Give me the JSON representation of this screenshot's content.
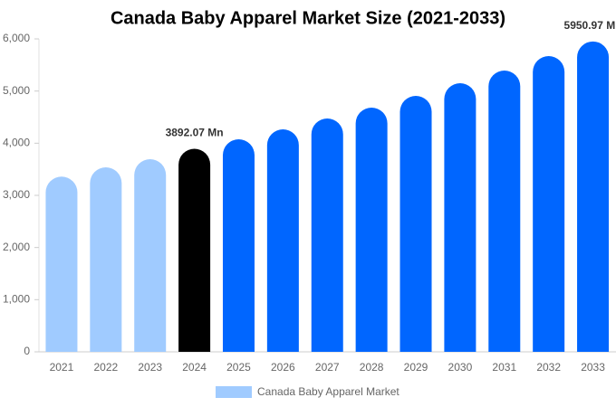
{
  "chart_data": {
    "type": "bar",
    "title": "Canada Baby Apparel Market Size (2021-2033)",
    "categories": [
      "2021",
      "2022",
      "2023",
      "2024",
      "2025",
      "2026",
      "2027",
      "2028",
      "2029",
      "2030",
      "2031",
      "2032",
      "2033"
    ],
    "series": [
      {
        "name": "Canada Baby Apparel Market",
        "color": "#a0cbff",
        "values": [
          3360,
          3537,
          3693,
          3892.07,
          4075,
          4266,
          4474,
          4682,
          4907,
          5150,
          5393,
          5670,
          5950.97
        ],
        "value_labels": [
          null,
          null,
          null,
          "3892.07 Mn",
          null,
          null,
          null,
          null,
          null,
          null,
          null,
          null,
          "5950.97 Mn"
        ],
        "colors": [
          "#a0cbff",
          "#a0cbff",
          "#a0cbff",
          "#000000",
          "#0066ff",
          "#0066ff",
          "#0066ff",
          "#0066ff",
          "#0066ff",
          "#0066ff",
          "#0066ff",
          "#0066ff",
          "#0066ff"
        ]
      }
    ],
    "ylim": [
      0,
      6000
    ],
    "yticks": [
      0,
      {
        "value": 1000,
        "label": "1,000"
      },
      {
        "value": 2000,
        "label": "2,000"
      },
      {
        "value": 3000,
        "label": "3,000"
      },
      {
        "value": 4000,
        "label": "4,000"
      },
      {
        "value": 5000,
        "label": "5,000"
      },
      {
        "value": 6000,
        "label": "6,000"
      }
    ],
    "grid": false,
    "legend": "bottom"
  }
}
